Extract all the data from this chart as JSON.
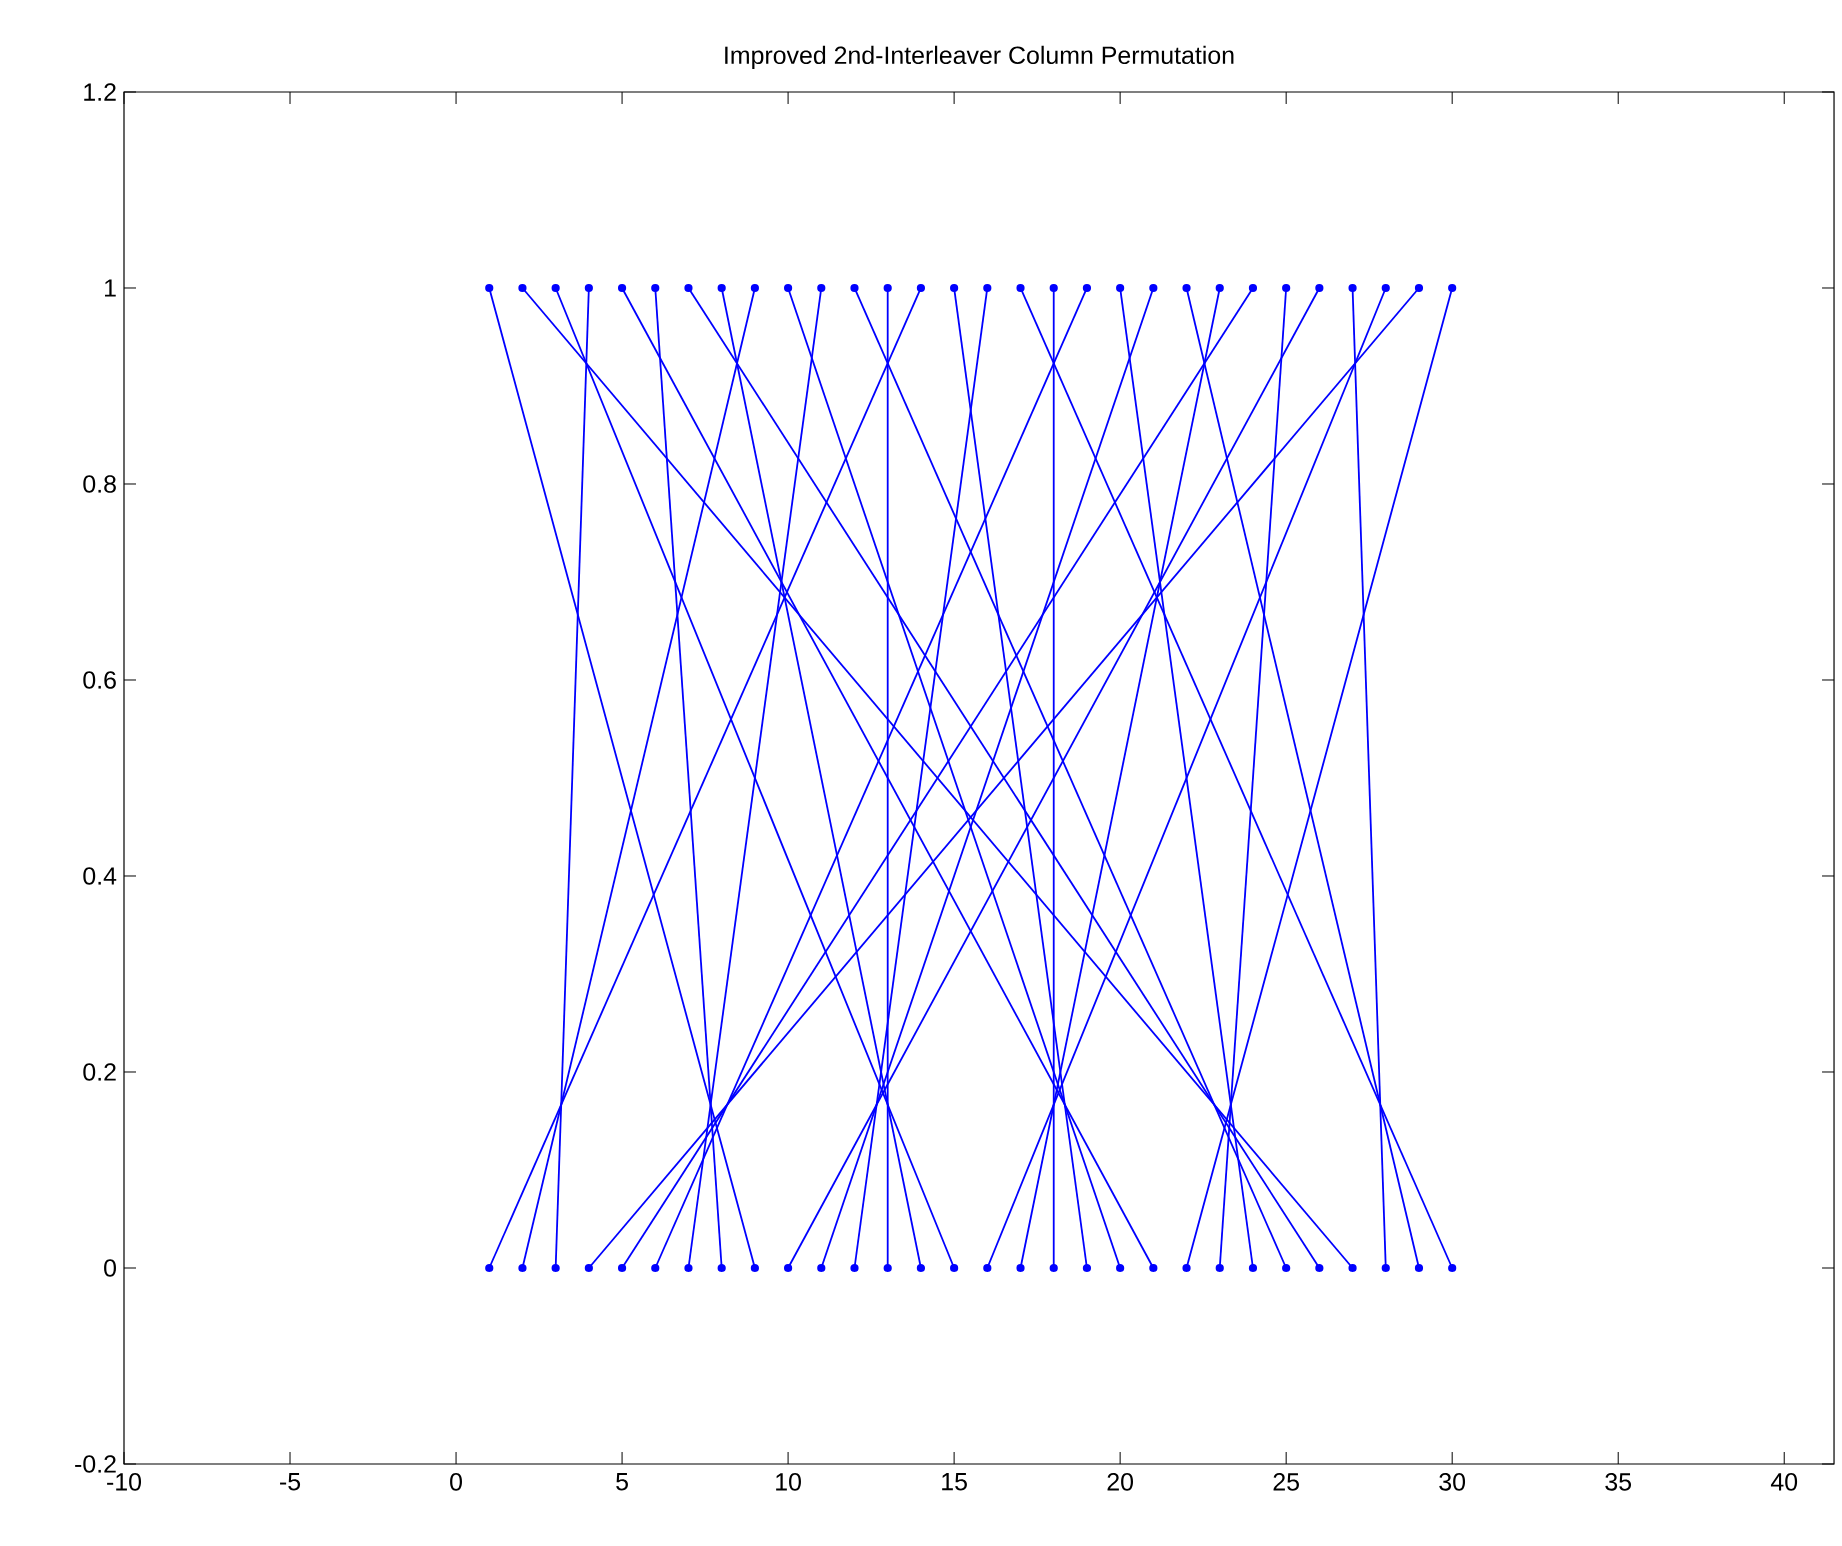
{
  "chart_data": {
    "type": "line",
    "title": "Improved 2nd-Interleaver Column Permutation",
    "xlim": [
      -10,
      41.5
    ],
    "ylim": [
      -0.2,
      1.2
    ],
    "xticks": [
      -10,
      -5,
      0,
      5,
      10,
      15,
      20,
      25,
      30,
      35,
      40
    ],
    "yticks": [
      -0.2,
      0,
      0.2,
      0.4,
      0.6,
      0.8,
      1,
      1.2
    ],
    "marker": "circle",
    "line_style": "solid",
    "series": [
      {
        "color": "#0000ff",
        "x": [
          14,
          1
        ],
        "values": [
          1,
          0
        ]
      },
      {
        "color": "#0000ff",
        "x": [
          9,
          2
        ],
        "values": [
          1,
          0
        ]
      },
      {
        "color": "#0000ff",
        "x": [
          4,
          3
        ],
        "values": [
          1,
          0
        ]
      },
      {
        "color": "#0000ff",
        "x": [
          29,
          4
        ],
        "values": [
          1,
          0
        ]
      },
      {
        "color": "#0000ff",
        "x": [
          24,
          5
        ],
        "values": [
          1,
          0
        ]
      },
      {
        "color": "#0000ff",
        "x": [
          19,
          6
        ],
        "values": [
          1,
          0
        ]
      },
      {
        "color": "#0000ff",
        "x": [
          11,
          7
        ],
        "values": [
          1,
          0
        ]
      },
      {
        "color": "#0000ff",
        "x": [
          6,
          8
        ],
        "values": [
          1,
          0
        ]
      },
      {
        "color": "#0000ff",
        "x": [
          1,
          9
        ],
        "values": [
          1,
          0
        ]
      },
      {
        "color": "#0000ff",
        "x": [
          26,
          10
        ],
        "values": [
          1,
          0
        ]
      },
      {
        "color": "#0000ff",
        "x": [
          21,
          11
        ],
        "values": [
          1,
          0
        ]
      },
      {
        "color": "#0000ff",
        "x": [
          16,
          12
        ],
        "values": [
          1,
          0
        ]
      },
      {
        "color": "#0000ff",
        "x": [
          13,
          13
        ],
        "values": [
          1,
          0
        ]
      },
      {
        "color": "#0000ff",
        "x": [
          8,
          14
        ],
        "values": [
          1,
          0
        ]
      },
      {
        "color": "#0000ff",
        "x": [
          3,
          15
        ],
        "values": [
          1,
          0
        ]
      },
      {
        "color": "#0000ff",
        "x": [
          28,
          16
        ],
        "values": [
          1,
          0
        ]
      },
      {
        "color": "#0000ff",
        "x": [
          23,
          17
        ],
        "values": [
          1,
          0
        ]
      },
      {
        "color": "#0000ff",
        "x": [
          18,
          18
        ],
        "values": [
          1,
          0
        ]
      },
      {
        "color": "#0000ff",
        "x": [
          15,
          19
        ],
        "values": [
          1,
          0
        ]
      },
      {
        "color": "#0000ff",
        "x": [
          10,
          20
        ],
        "values": [
          1,
          0
        ]
      },
      {
        "color": "#0000ff",
        "x": [
          5,
          21
        ],
        "values": [
          1,
          0
        ]
      },
      {
        "color": "#0000ff",
        "x": [
          30,
          22
        ],
        "values": [
          1,
          0
        ]
      },
      {
        "color": "#0000ff",
        "x": [
          25,
          23
        ],
        "values": [
          1,
          0
        ]
      },
      {
        "color": "#0000ff",
        "x": [
          20,
          24
        ],
        "values": [
          1,
          0
        ]
      },
      {
        "color": "#0000ff",
        "x": [
          12,
          25
        ],
        "values": [
          1,
          0
        ]
      },
      {
        "color": "#0000ff",
        "x": [
          7,
          26
        ],
        "values": [
          1,
          0
        ]
      },
      {
        "color": "#0000ff",
        "x": [
          2,
          27
        ],
        "values": [
          1,
          0
        ]
      },
      {
        "color": "#0000ff",
        "x": [
          27,
          28
        ],
        "values": [
          1,
          0
        ]
      },
      {
        "color": "#0000ff",
        "x": [
          22,
          29
        ],
        "values": [
          1,
          0
        ]
      },
      {
        "color": "#0000ff",
        "x": [
          17,
          30
        ],
        "values": [
          1,
          0
        ]
      }
    ]
  }
}
